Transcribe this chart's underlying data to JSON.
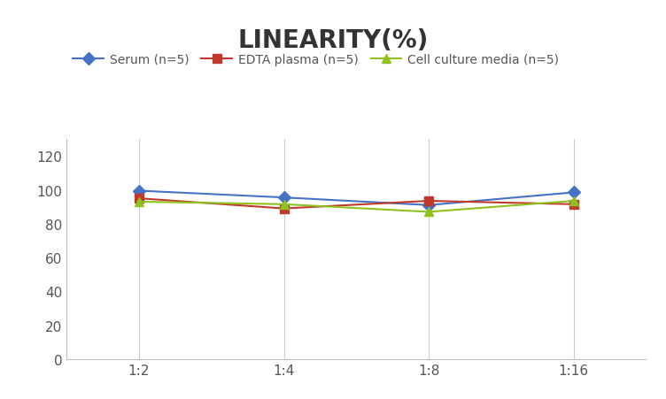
{
  "title": "LINEARITY(%)",
  "title_fontsize": 20,
  "title_fontweight": "bold",
  "title_color": "#333333",
  "x_labels": [
    "1:2",
    "1:4",
    "1:8",
    "1:16"
  ],
  "x_positions": [
    0,
    1,
    2,
    3
  ],
  "series": [
    {
      "label": "Serum (n=5)",
      "color": "#4472C4",
      "marker": "D",
      "values": [
        99.5,
        95.5,
        91.0,
        98.5
      ]
    },
    {
      "label": "EDTA plasma (n=5)",
      "color": "#C0392B",
      "marker": "s",
      "values": [
        95.0,
        89.0,
        93.5,
        91.5
      ]
    },
    {
      "label": "Cell culture media (n=5)",
      "color": "#8DC21F",
      "marker": "^",
      "values": [
        93.0,
        91.5,
        87.0,
        93.5
      ]
    }
  ],
  "ylim": [
    0,
    130
  ],
  "yticks": [
    0,
    20,
    40,
    60,
    80,
    100,
    120
  ],
  "grid_color": "#CCCCCC",
  "background_color": "#FFFFFF",
  "legend_fontsize": 10,
  "tick_fontsize": 11,
  "tick_color": "#555555"
}
